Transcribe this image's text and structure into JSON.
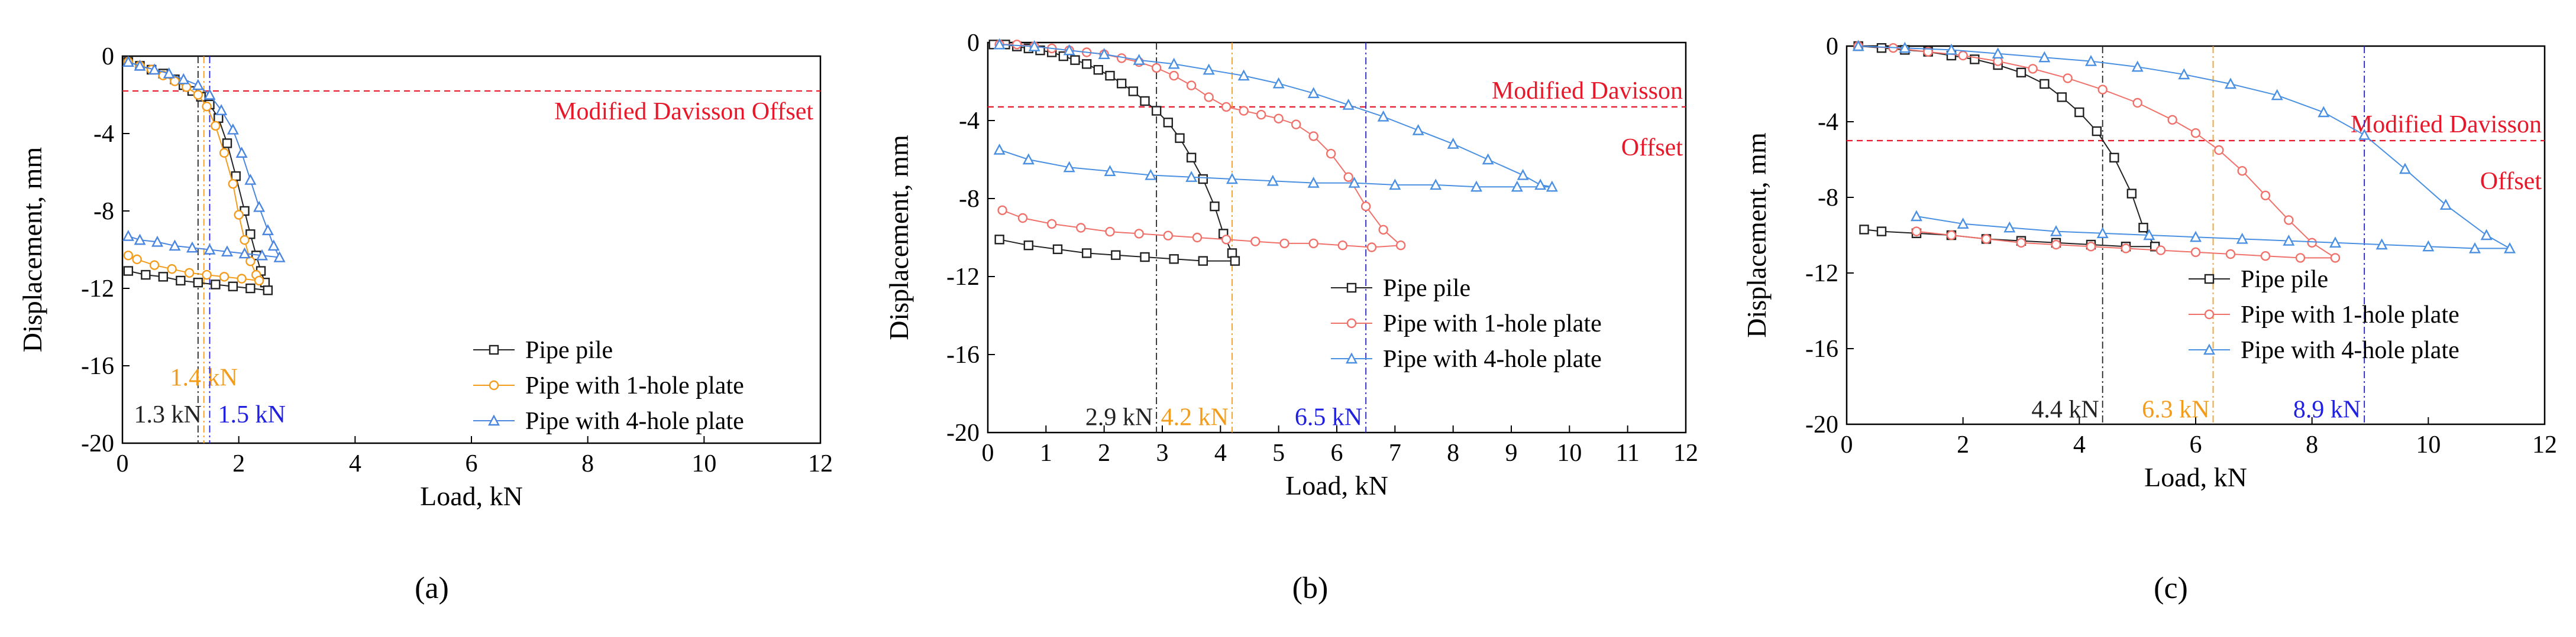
{
  "chart_data": [
    {
      "type": "line",
      "panel_label": "(a)",
      "xlabel": "Load, kN",
      "ylabel": "Displacement, mm",
      "xlim": [
        0,
        12
      ],
      "ylim": [
        -20,
        0
      ],
      "x_ticks": [
        "0",
        "2",
        "4",
        "6",
        "8",
        "10",
        "12"
      ],
      "y_ticks": [
        "0",
        "-4",
        "-8",
        "-12",
        "-16",
        "-20"
      ],
      "davisson": {
        "label_lines": [
          "Modified Davisson Offset"
        ],
        "y": -1.8
      },
      "capacities": [
        {
          "label": "1.3 kN",
          "x": 1.3,
          "color": "#222222",
          "label_y": -18.5
        },
        {
          "label": "1.4 kN",
          "x": 1.4,
          "color": "#f39c1c",
          "label_y": -16.6
        },
        {
          "label": "1.5 kN",
          "x": 1.5,
          "color": "#2020e0",
          "label_y": -18.5
        }
      ],
      "legend": [
        "Pipe pile",
        "Pipe with 1-hole plate",
        "Pipe with 4-hole plate"
      ],
      "series": [
        {
          "name": "Pipe pile",
          "color": "#222222",
          "marker": "square",
          "x": [
            0.1,
            0.3,
            0.5,
            0.7,
            0.9,
            1.05,
            1.2,
            1.35,
            1.5,
            1.65,
            1.8,
            1.95,
            2.1,
            2.2,
            2.3,
            2.38,
            2.45,
            2.5,
            2.2,
            1.9,
            1.6,
            1.3,
            1.0,
            0.7,
            0.4,
            0.1
          ],
          "y": [
            -0.3,
            -0.5,
            -0.7,
            -0.9,
            -1.2,
            -1.5,
            -1.8,
            -2.1,
            -2.5,
            -3.2,
            -4.5,
            -6.2,
            -8.0,
            -9.2,
            -10.3,
            -11.1,
            -11.7,
            -12.1,
            -12.0,
            -11.9,
            -11.8,
            -11.7,
            -11.6,
            -11.4,
            -11.3,
            -11.1
          ]
        },
        {
          "name": "Pipe with 1-hole plate",
          "color": "#f39c1c",
          "marker": "circle",
          "x": [
            0.1,
            0.3,
            0.5,
            0.7,
            0.9,
            1.1,
            1.3,
            1.45,
            1.6,
            1.75,
            1.9,
            2.0,
            2.1,
            2.2,
            2.3,
            2.35,
            2.05,
            1.75,
            1.45,
            1.15,
            0.85,
            0.55,
            0.25,
            0.1
          ],
          "y": [
            -0.3,
            -0.5,
            -0.7,
            -1.0,
            -1.3,
            -1.6,
            -2.0,
            -2.6,
            -3.6,
            -5.0,
            -6.6,
            -8.2,
            -9.5,
            -10.6,
            -11.3,
            -11.6,
            -11.5,
            -11.4,
            -11.3,
            -11.2,
            -11.0,
            -10.8,
            -10.5,
            -10.3
          ]
        },
        {
          "name": "Pipe with 4-hole plate",
          "color": "#4a86e0",
          "marker": "triangle",
          "x": [
            0.1,
            0.3,
            0.55,
            0.8,
            1.05,
            1.3,
            1.5,
            1.7,
            1.9,
            2.05,
            2.2,
            2.35,
            2.5,
            2.6,
            2.7,
            2.4,
            2.1,
            1.8,
            1.5,
            1.2,
            0.9,
            0.6,
            0.3,
            0.1
          ],
          "y": [
            -0.3,
            -0.5,
            -0.7,
            -0.9,
            -1.2,
            -1.5,
            -2.0,
            -2.8,
            -3.8,
            -5.0,
            -6.4,
            -7.8,
            -9.0,
            -9.8,
            -10.4,
            -10.3,
            -10.2,
            -10.1,
            -10.0,
            -9.9,
            -9.8,
            -9.6,
            -9.5,
            -9.3
          ]
        }
      ]
    },
    {
      "type": "line",
      "panel_label": "(b)",
      "xlabel": "Load, kN",
      "ylabel": "Displacement, mm",
      "xlim": [
        0,
        12
      ],
      "ylim": [
        -20,
        0
      ],
      "x_ticks": [
        "0",
        "1",
        "2",
        "3",
        "4",
        "5",
        "6",
        "7",
        "8",
        "9",
        "10",
        "11",
        "12"
      ],
      "y_ticks": [
        "0",
        "-4",
        "-8",
        "-12",
        "-16",
        "-20"
      ],
      "davisson": {
        "label_lines": [
          "Modified Davisson",
          "Offset"
        ],
        "y": -3.3
      },
      "capacities": [
        {
          "label": "2.9 kN",
          "x": 2.9,
          "color": "#222222",
          "label_y": -19.2
        },
        {
          "label": "4.2 kN",
          "x": 4.2,
          "color": "#f39c1c",
          "label_y": -19.2
        },
        {
          "label": "6.5 kN",
          "x": 6.5,
          "color": "#2020e0",
          "label_y": -19.2
        }
      ],
      "legend": [
        "Pipe pile",
        "Pipe with 1-hole plate",
        "Pipe with 4-hole plate"
      ],
      "series": [
        {
          "name": "Pipe pile",
          "color": "#222222",
          "marker": "square",
          "x": [
            0.1,
            0.3,
            0.5,
            0.7,
            0.9,
            1.1,
            1.3,
            1.5,
            1.7,
            1.9,
            2.1,
            2.3,
            2.5,
            2.7,
            2.9,
            3.1,
            3.3,
            3.5,
            3.7,
            3.9,
            4.05,
            4.2,
            4.25,
            3.7,
            3.2,
            2.7,
            2.2,
            1.7,
            1.2,
            0.7,
            0.2
          ],
          "y": [
            -0.1,
            -0.1,
            -0.2,
            -0.3,
            -0.4,
            -0.5,
            -0.7,
            -0.9,
            -1.1,
            -1.4,
            -1.7,
            -2.1,
            -2.5,
            -3.0,
            -3.5,
            -4.1,
            -4.9,
            -5.9,
            -7.0,
            -8.4,
            -9.8,
            -10.8,
            -11.2,
            -11.2,
            -11.1,
            -11.0,
            -10.9,
            -10.8,
            -10.6,
            -10.4,
            -10.1
          ]
        },
        {
          "name": "Pipe with 1-hole plate",
          "color": "#f0706a",
          "marker": "circle",
          "x": [
            0.2,
            0.5,
            0.8,
            1.1,
            1.4,
            1.7,
            2.0,
            2.3,
            2.6,
            2.9,
            3.2,
            3.5,
            3.8,
            4.1,
            4.4,
            4.7,
            5.0,
            5.3,
            5.6,
            5.9,
            6.2,
            6.5,
            6.8,
            7.1,
            6.6,
            6.1,
            5.6,
            5.1,
            4.6,
            4.1,
            3.6,
            3.1,
            2.6,
            2.1,
            1.6,
            1.1,
            0.6,
            0.25
          ],
          "y": [
            -0.1,
            -0.1,
            -0.2,
            -0.3,
            -0.4,
            -0.5,
            -0.6,
            -0.8,
            -1.0,
            -1.3,
            -1.7,
            -2.2,
            -2.8,
            -3.3,
            -3.5,
            -3.7,
            -3.9,
            -4.2,
            -4.8,
            -5.7,
            -6.9,
            -8.4,
            -9.6,
            -10.4,
            -10.5,
            -10.4,
            -10.3,
            -10.3,
            -10.2,
            -10.1,
            -10.0,
            -9.9,
            -9.8,
            -9.7,
            -9.5,
            -9.3,
            -9.0,
            -8.6
          ]
        },
        {
          "name": "Pipe with 4-hole plate",
          "color": "#4a90e2",
          "marker": "triangle",
          "x": [
            0.2,
            0.8,
            1.4,
            2.0,
            2.6,
            3.2,
            3.8,
            4.4,
            5.0,
            5.6,
            6.2,
            6.8,
            7.4,
            8.0,
            8.6,
            9.2,
            9.5,
            9.7,
            9.1,
            8.4,
            7.7,
            7.0,
            6.3,
            5.6,
            4.9,
            4.2,
            3.5,
            2.8,
            2.1,
            1.4,
            0.7,
            0.2
          ],
          "y": [
            -0.1,
            -0.2,
            -0.4,
            -0.6,
            -0.9,
            -1.1,
            -1.4,
            -1.7,
            -2.1,
            -2.6,
            -3.2,
            -3.8,
            -4.5,
            -5.2,
            -6.0,
            -6.8,
            -7.3,
            -7.4,
            -7.4,
            -7.4,
            -7.3,
            -7.3,
            -7.2,
            -7.2,
            -7.1,
            -7.0,
            -6.9,
            -6.8,
            -6.6,
            -6.4,
            -6.0,
            -5.5
          ]
        }
      ]
    },
    {
      "type": "line",
      "panel_label": "(c)",
      "xlabel": "Load, kN",
      "ylabel": "Displacement, mm",
      "xlim": [
        0,
        12
      ],
      "ylim": [
        -20,
        0
      ],
      "x_ticks": [
        "0",
        "2",
        "4",
        "6",
        "8",
        "10",
        "12"
      ],
      "y_ticks": [
        "0",
        "-4",
        "-8",
        "-12",
        "-16",
        "-20"
      ],
      "davisson": {
        "label_lines": [
          "Modified Davisson",
          "Offset"
        ],
        "y": -5.0
      },
      "capacities": [
        {
          "label": "4.4 kN",
          "x": 4.4,
          "color": "#222222",
          "label_y": -19.2
        },
        {
          "label": "6.3 kN",
          "x": 6.3,
          "color": "#f39c1c",
          "label_y": -19.2
        },
        {
          "label": "8.9 kN",
          "x": 8.9,
          "color": "#2020e0",
          "label_y": -19.2
        }
      ],
      "legend": [
        "Pipe pile",
        "Pipe with 1-hole plate",
        "Pipe with 4-hole plate"
      ],
      "series": [
        {
          "name": "Pipe pile",
          "color": "#222222",
          "marker": "square",
          "x": [
            0.2,
            0.6,
            1.0,
            1.4,
            1.8,
            2.2,
            2.6,
            3.0,
            3.4,
            3.7,
            4.0,
            4.3,
            4.6,
            4.9,
            5.1,
            5.3,
            4.8,
            4.2,
            3.6,
            3.0,
            2.4,
            1.8,
            1.2,
            0.6,
            0.3
          ],
          "y": [
            0.0,
            -0.1,
            -0.2,
            -0.3,
            -0.5,
            -0.7,
            -1.0,
            -1.4,
            -2.0,
            -2.7,
            -3.5,
            -4.5,
            -5.9,
            -7.8,
            -9.6,
            -10.6,
            -10.6,
            -10.5,
            -10.4,
            -10.3,
            -10.2,
            -10.0,
            -9.9,
            -9.8,
            -9.7
          ]
        },
        {
          "name": "Pipe with 1-hole plate",
          "color": "#f0706a",
          "marker": "circle",
          "x": [
            0.2,
            0.8,
            1.4,
            2.0,
            2.6,
            3.2,
            3.8,
            4.4,
            5.0,
            5.6,
            6.0,
            6.4,
            6.8,
            7.2,
            7.6,
            8.0,
            8.4,
            7.8,
            7.2,
            6.6,
            6.0,
            5.4,
            4.8,
            4.2,
            3.6,
            3.0,
            2.4,
            1.8,
            1.2
          ],
          "y": [
            0.0,
            -0.1,
            -0.3,
            -0.5,
            -0.8,
            -1.2,
            -1.7,
            -2.3,
            -3.0,
            -3.9,
            -4.6,
            -5.5,
            -6.6,
            -7.9,
            -9.2,
            -10.4,
            -11.2,
            -11.2,
            -11.1,
            -11.0,
            -10.9,
            -10.8,
            -10.7,
            -10.6,
            -10.5,
            -10.4,
            -10.2,
            -10.0,
            -9.8
          ]
        },
        {
          "name": "Pipe with 4-hole plate",
          "color": "#4a90e2",
          "marker": "triangle",
          "x": [
            0.2,
            1.0,
            1.8,
            2.6,
            3.4,
            4.2,
            5.0,
            5.8,
            6.6,
            7.4,
            8.2,
            8.9,
            9.6,
            10.3,
            11.0,
            11.4,
            10.8,
            10.0,
            9.2,
            8.4,
            7.6,
            6.8,
            6.0,
            5.2,
            4.4,
            3.6,
            2.8,
            2.0,
            1.2
          ],
          "y": [
            0.0,
            -0.1,
            -0.2,
            -0.4,
            -0.6,
            -0.8,
            -1.1,
            -1.5,
            -2.0,
            -2.6,
            -3.5,
            -4.7,
            -6.5,
            -8.4,
            -10.0,
            -10.7,
            -10.7,
            -10.6,
            -10.5,
            -10.4,
            -10.3,
            -10.2,
            -10.1,
            -10.0,
            -9.9,
            -9.8,
            -9.6,
            -9.4,
            -9.0
          ]
        }
      ]
    }
  ]
}
